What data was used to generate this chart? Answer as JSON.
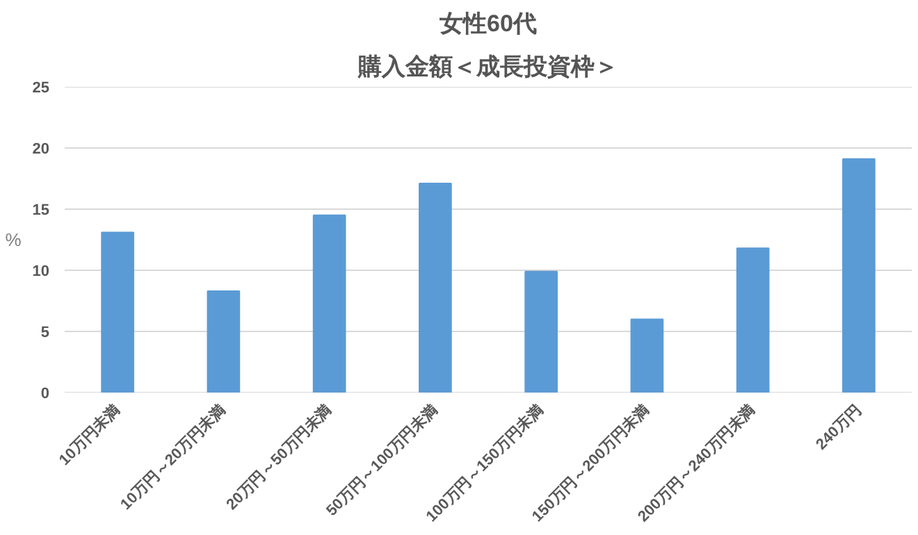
{
  "chart_data": {
    "type": "bar",
    "title": "女性60代",
    "subtitle": "購入金額＜成長投資枠＞",
    "ylabel": "%",
    "categories": [
      "10万円未満",
      "10万円～20万円未満",
      "20万円～50万円未満",
      "50万円～100万円未満",
      "100万円～150万円未満",
      "150万円～200万円未満",
      "200万円～240万円未満",
      "240万円"
    ],
    "values": [
      13.1,
      8.3,
      14.5,
      17.1,
      9.9,
      6.0,
      11.8,
      19.1
    ],
    "color": "#5b9bd5",
    "ylim": [
      0,
      25
    ],
    "yticks": [
      0,
      5,
      10,
      15,
      20,
      25
    ],
    "grid": "y"
  }
}
